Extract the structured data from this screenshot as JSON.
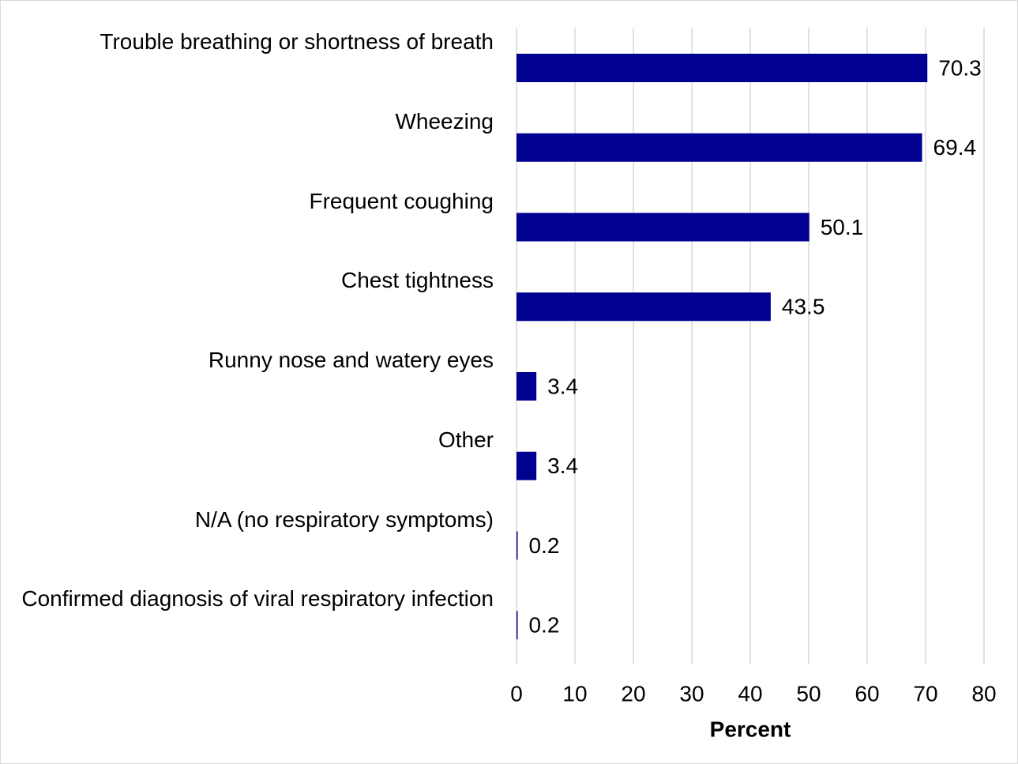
{
  "chart_data": {
    "type": "bar",
    "orientation": "horizontal",
    "categories": [
      "Trouble breathing or shortness of breath",
      "Wheezing",
      "Frequent coughing",
      "Chest tightness",
      "Runny nose and watery eyes",
      "Other",
      "N/A (no respiratory symptoms)",
      "Confirmed diagnosis of viral respiratory infection"
    ],
    "values": [
      70.3,
      69.4,
      50.1,
      43.5,
      3.4,
      3.4,
      0.2,
      0.2
    ],
    "color": "#000091",
    "xlabel": "Percent",
    "xlim": [
      0,
      80
    ],
    "xticks": [
      0,
      10,
      20,
      30,
      40,
      50,
      60,
      70,
      80
    ],
    "grid": true
  }
}
